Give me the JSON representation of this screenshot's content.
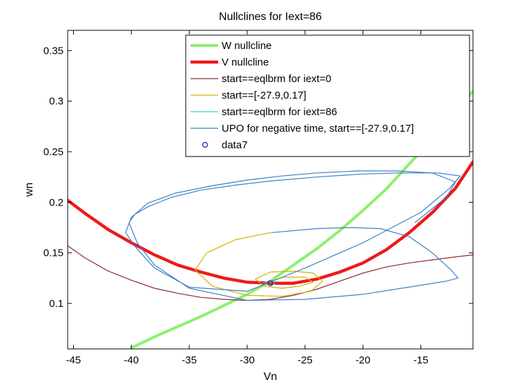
{
  "chart_data": {
    "type": "line",
    "title": "Nullclines for Iext=86",
    "xlabel": "Vn",
    "ylabel": "wn",
    "xlim": [
      -45.5,
      -10.5
    ],
    "ylim": [
      0.055,
      0.37
    ],
    "xticks": [
      -45,
      -40,
      -35,
      -30,
      -25,
      -20,
      -15
    ],
    "yticks": [
      0.1,
      0.15,
      0.2,
      0.25,
      0.3,
      0.35
    ],
    "legend_position": "top-right",
    "grid": false,
    "series": [
      {
        "name": "W nullcline",
        "color": "#8cf06e",
        "width": 4,
        "kind": "line",
        "x": [
          -40.0,
          -38,
          -36,
          -34,
          -32,
          -30,
          -28,
          -26,
          -24,
          -22,
          -20,
          -18,
          -16,
          -14,
          -12,
          -10.5
        ],
        "y": [
          0.056,
          0.067,
          0.077,
          0.087,
          0.098,
          0.109,
          0.122,
          0.138,
          0.154,
          0.172,
          0.192,
          0.213,
          0.238,
          0.263,
          0.29,
          0.31
        ]
      },
      {
        "name": "V nullcline",
        "color": "#ee1a1a",
        "width": 4.5,
        "kind": "line",
        "x": [
          -45.5,
          -44,
          -42,
          -40,
          -38,
          -36,
          -34,
          -32,
          -30,
          -28,
          -26,
          -24,
          -22,
          -20,
          -18,
          -16,
          -14,
          -12,
          -10.5
        ],
        "y": [
          0.202,
          0.189,
          0.173,
          0.16,
          0.148,
          0.138,
          0.131,
          0.125,
          0.121,
          0.12,
          0.12,
          0.124,
          0.131,
          0.14,
          0.153,
          0.17,
          0.19,
          0.214,
          0.24
        ]
      },
      {
        "name": "start==eqlbrm for iext=0",
        "color": "#8b2a2a",
        "width": 1.2,
        "kind": "line",
        "x": [
          -45.5,
          -44,
          -42,
          -40,
          -38,
          -36,
          -34,
          -32,
          -30,
          -28,
          -26,
          -24,
          -22,
          -20,
          -18,
          -16,
          -14,
          -12,
          -10.5
        ],
        "y": [
          0.157,
          0.145,
          0.132,
          0.123,
          0.115,
          0.11,
          0.106,
          0.104,
          0.103,
          0.104,
          0.108,
          0.114,
          0.122,
          0.13,
          0.136,
          0.14,
          0.143,
          0.146,
          0.148
        ]
      },
      {
        "name": "start==[-27.9,0.17]",
        "color": "#d4b000",
        "width": 1.2,
        "kind": "line",
        "x": [
          -28.0,
          -31,
          -33.5,
          -34.5,
          -33,
          -30,
          -27,
          -24.5,
          -23.5,
          -24.3,
          -26,
          -28,
          -29.3,
          -28.5,
          -27,
          -25.5,
          -24.3,
          -25,
          -26.8,
          -28.3
        ],
        "y": [
          0.17,
          0.163,
          0.15,
          0.133,
          0.117,
          0.108,
          0.107,
          0.112,
          0.122,
          0.13,
          0.132,
          0.131,
          0.124,
          0.117,
          0.115,
          0.117,
          0.121,
          0.126,
          0.126,
          0.121
        ]
      },
      {
        "name": "start==eqlbrm for iext=86",
        "color": "#2fd8c8",
        "width": 1.2,
        "kind": "line",
        "x": [
          -28.6,
          -28.2,
          -27.9,
          -27.6,
          -27.9,
          -28.3
        ],
        "y": [
          0.12,
          0.122,
          0.121,
          0.119,
          0.118,
          0.119
        ]
      },
      {
        "name": "UPO for negative time, start==[-27.9,0.17]",
        "color": "#3a7fc6",
        "width": 1.2,
        "kind": "line",
        "x": [
          -27.9,
          -24,
          -21,
          -18.5,
          -16,
          -14,
          -12.3,
          -11.8,
          -12.8,
          -15,
          -20,
          -25,
          -30,
          -35,
          -38,
          -39.5,
          -40.2,
          -39.7,
          -38.5,
          -36.5,
          -34,
          -31,
          -28,
          -24,
          -20,
          -17,
          -13.5,
          -11.6,
          -12.5,
          -15,
          -20,
          -25,
          -30,
          -35,
          -38,
          -39.6,
          -40.5,
          -40.0,
          -38.6,
          -36.2,
          -33.2,
          -30,
          -27,
          -24,
          -20.5,
          -17,
          -14,
          -12,
          -12.8,
          -15.5
        ],
        "y": [
          0.17,
          0.174,
          0.175,
          0.174,
          0.166,
          0.15,
          0.132,
          0.125,
          0.122,
          0.118,
          0.109,
          0.104,
          0.103,
          0.115,
          0.138,
          0.16,
          0.18,
          0.188,
          0.196,
          0.205,
          0.212,
          0.217,
          0.221,
          0.225,
          0.228,
          0.229,
          0.229,
          0.226,
          0.214,
          0.19,
          0.16,
          0.135,
          0.112,
          0.116,
          0.135,
          0.155,
          0.17,
          0.185,
          0.199,
          0.209,
          0.216,
          0.222,
          0.226,
          0.229,
          0.231,
          0.231,
          0.229,
          0.22,
          0.205,
          0.18
        ]
      },
      {
        "name": "data7",
        "color": "#1a1aa0",
        "kind": "marker",
        "x": [
          -28.0
        ],
        "y": [
          0.12
        ]
      }
    ]
  }
}
